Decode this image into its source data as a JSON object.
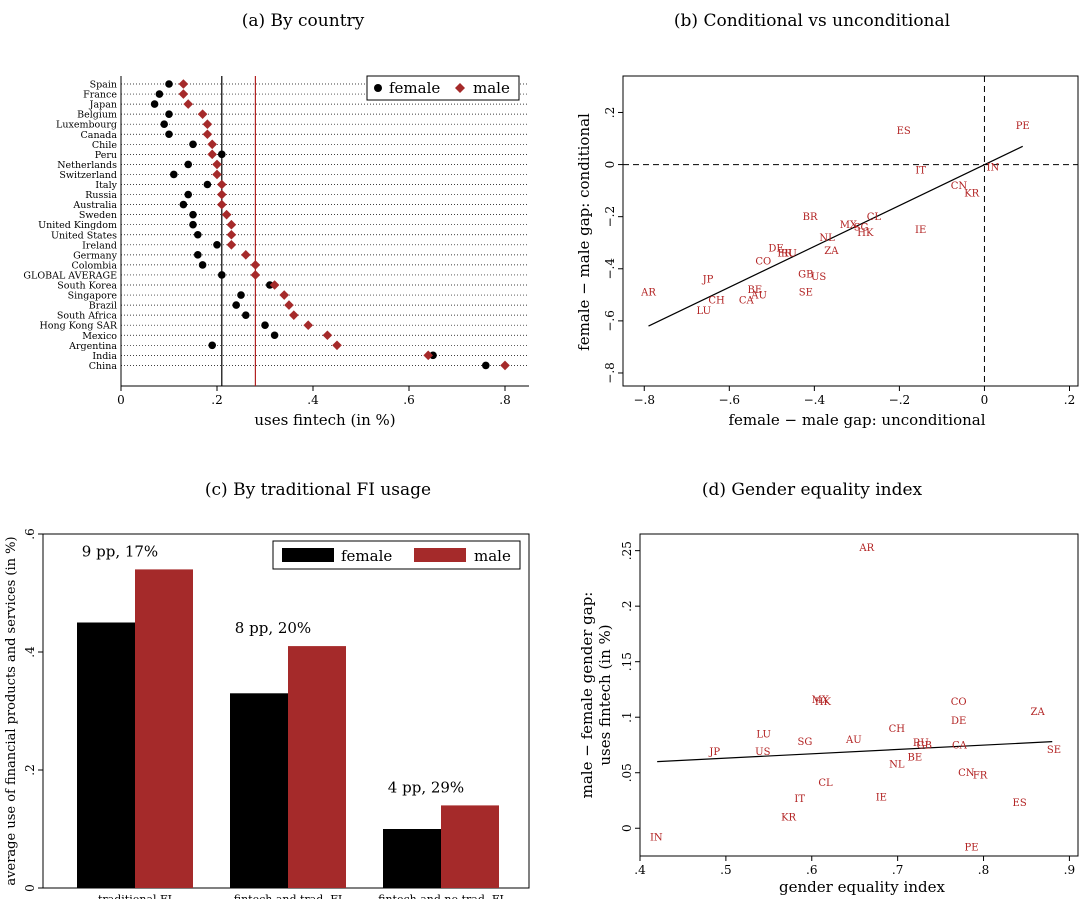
{
  "colors": {
    "female": "#000000",
    "male": "#a52a2a",
    "label_red": "#b22222"
  },
  "chart_data": [
    {
      "panel": "a",
      "type": "scatter",
      "title": "(a) By country",
      "xlabel": "uses fintech (in %)",
      "ylabel": "",
      "xlim": [
        0,
        0.85
      ],
      "xticks": [
        "0",
        ".2",
        ".4",
        ".6",
        ".8"
      ],
      "xtick_values": [
        0,
        0.2,
        0.4,
        0.6,
        0.8
      ],
      "grid": "dotted horizontal per country",
      "legend": {
        "placement": "top-right",
        "entries": [
          "female",
          "male"
        ]
      },
      "reference_lines": {
        "female_avg": 0.21,
        "male_avg": 0.28
      },
      "categories": [
        "Spain",
        "France",
        "Japan",
        "Belgium",
        "Luxembourg",
        "Canada",
        "Chile",
        "Peru",
        "Netherlands",
        "Switzerland",
        "Italy",
        "Russia",
        "Australia",
        "Sweden",
        "United Kingdom",
        "United States",
        "Ireland",
        "Germany",
        "Colombia",
        "GLOBAL AVERAGE",
        "South Korea",
        "Singapore",
        "Brazil",
        "South Africa",
        "Hong Kong SAR",
        "Mexico",
        "Argentina",
        "India",
        "China"
      ],
      "series": [
        {
          "name": "female",
          "values": [
            0.1,
            0.08,
            0.07,
            0.1,
            0.09,
            0.1,
            0.15,
            0.21,
            0.14,
            0.11,
            0.18,
            0.14,
            0.13,
            0.15,
            0.15,
            0.16,
            0.2,
            0.16,
            0.17,
            0.21,
            0.31,
            0.25,
            0.24,
            0.26,
            0.3,
            0.32,
            0.19,
            0.65,
            0.76
          ]
        },
        {
          "name": "male",
          "values": [
            0.13,
            0.13,
            0.14,
            0.17,
            0.18,
            0.18,
            0.19,
            0.19,
            0.2,
            0.2,
            0.21,
            0.21,
            0.21,
            0.22,
            0.23,
            0.23,
            0.23,
            0.26,
            0.28,
            0.28,
            0.32,
            0.34,
            0.35,
            0.36,
            0.39,
            0.43,
            0.45,
            0.64,
            0.8
          ]
        }
      ]
    },
    {
      "panel": "b",
      "type": "scatter",
      "title": "(b) Conditional vs unconditional",
      "xlabel": "female − male gap: unconditional",
      "ylabel": "female − male gap: conditional",
      "xlim": [
        -0.85,
        0.22
      ],
      "ylim": [
        -0.85,
        0.34
      ],
      "xticks": [
        "−.8",
        "−.6",
        "−.4",
        "−.2",
        "0",
        ".2"
      ],
      "xtick_values": [
        -0.8,
        -0.6,
        -0.4,
        -0.2,
        0,
        0.2
      ],
      "yticks": [
        "−.8",
        "−.6",
        "−.4",
        "−.2",
        "0",
        ".2"
      ],
      "ytick_values": [
        -0.8,
        -0.6,
        -0.4,
        -0.2,
        0,
        0.2
      ],
      "reference_lines": {
        "x": 0,
        "y": 0
      },
      "fit_line": [
        [
          -0.79,
          -0.62
        ],
        [
          0.09,
          0.07
        ]
      ],
      "points": [
        {
          "label": "PE",
          "x": 0.09,
          "y": 0.15
        },
        {
          "label": "ES",
          "x": -0.19,
          "y": 0.13
        },
        {
          "label": "IT",
          "x": -0.15,
          "y": -0.02
        },
        {
          "label": "IN",
          "x": 0.02,
          "y": -0.01
        },
        {
          "label": "CN",
          "x": -0.06,
          "y": -0.08
        },
        {
          "label": "KR",
          "x": -0.03,
          "y": -0.11
        },
        {
          "label": "BR",
          "x": -0.41,
          "y": -0.2
        },
        {
          "label": "CL",
          "x": -0.26,
          "y": -0.2
        },
        {
          "label": "MX",
          "x": -0.32,
          "y": -0.23
        },
        {
          "label": "SG",
          "x": -0.29,
          "y": -0.24
        },
        {
          "label": "HK",
          "x": -0.28,
          "y": -0.26
        },
        {
          "label": "IE",
          "x": -0.15,
          "y": -0.25
        },
        {
          "label": "NL",
          "x": -0.37,
          "y": -0.28
        },
        {
          "label": "DE",
          "x": -0.49,
          "y": -0.32
        },
        {
          "label": "ZA",
          "x": -0.36,
          "y": -0.33
        },
        {
          "label": "FR",
          "x": -0.47,
          "y": -0.34
        },
        {
          "label": "RU",
          "x": -0.46,
          "y": -0.34
        },
        {
          "label": "CO",
          "x": -0.52,
          "y": -0.37
        },
        {
          "label": "GB",
          "x": -0.42,
          "y": -0.42
        },
        {
          "label": "US",
          "x": -0.39,
          "y": -0.43
        },
        {
          "label": "JP",
          "x": -0.65,
          "y": -0.44
        },
        {
          "label": "AR",
          "x": -0.79,
          "y": -0.49
        },
        {
          "label": "BE",
          "x": -0.54,
          "y": -0.48
        },
        {
          "label": "SE",
          "x": -0.42,
          "y": -0.49
        },
        {
          "label": "AU",
          "x": -0.53,
          "y": -0.5
        },
        {
          "label": "CH",
          "x": -0.63,
          "y": -0.52
        },
        {
          "label": "CA",
          "x": -0.56,
          "y": -0.52
        },
        {
          "label": "LU",
          "x": -0.66,
          "y": -0.56
        }
      ]
    },
    {
      "panel": "c",
      "type": "bar",
      "title": "(c) By traditional FI usage",
      "xlabel": "",
      "ylabel": "average use of financial products and services (in %)",
      "ylim": [
        0,
        0.6
      ],
      "yticks": [
        "0",
        ".2",
        ".4",
        ".6"
      ],
      "ytick_values": [
        0,
        0.2,
        0.4,
        0.6
      ],
      "legend": {
        "placement": "top-right",
        "entries": [
          "female",
          "male"
        ]
      },
      "categories": [
        "traditional FI",
        "fintech and trad. FI",
        "fintech and no trad. FI"
      ],
      "annotations": [
        "9 pp, 17%",
        "8 pp, 20%",
        "4 pp, 29%"
      ],
      "series": [
        {
          "name": "female",
          "values": [
            0.45,
            0.33,
            0.1
          ]
        },
        {
          "name": "male",
          "values": [
            0.54,
            0.41,
            0.14
          ]
        }
      ]
    },
    {
      "panel": "d",
      "type": "scatter",
      "title": "(d) Gender equality index",
      "xlabel": "gender equality index",
      "ylabel": "male − female gender gap: uses fintech (in %)",
      "xlim": [
        0.4,
        0.91
      ],
      "ylim": [
        -0.025,
        0.265
      ],
      "xticks": [
        ".4",
        ".5",
        ".6",
        ".7",
        ".8",
        ".9"
      ],
      "xtick_values": [
        0.4,
        0.5,
        0.6,
        0.7,
        0.8,
        0.9
      ],
      "yticks": [
        "0",
        ".05",
        ".1",
        ".15",
        ".2",
        ".25"
      ],
      "ytick_values": [
        0,
        0.05,
        0.1,
        0.15,
        0.2,
        0.25
      ],
      "fit_line": [
        [
          0.42,
          0.06
        ],
        [
          0.88,
          0.078
        ]
      ],
      "points": [
        {
          "label": "AR",
          "x": 0.664,
          "y": 0.253
        },
        {
          "label": "MX",
          "x": 0.61,
          "y": 0.116
        },
        {
          "label": "HK",
          "x": 0.613,
          "y": 0.114
        },
        {
          "label": "CO",
          "x": 0.771,
          "y": 0.114
        },
        {
          "label": "ZA",
          "x": 0.863,
          "y": 0.105
        },
        {
          "label": "DE",
          "x": 0.771,
          "y": 0.097
        },
        {
          "label": "CH",
          "x": 0.699,
          "y": 0.09
        },
        {
          "label": "LU",
          "x": 0.544,
          "y": 0.085
        },
        {
          "label": "AU",
          "x": 0.649,
          "y": 0.08
        },
        {
          "label": "SG",
          "x": 0.592,
          "y": 0.078
        },
        {
          "label": "RU",
          "x": 0.727,
          "y": 0.077
        },
        {
          "label": "GB",
          "x": 0.731,
          "y": 0.075
        },
        {
          "label": "CA",
          "x": 0.772,
          "y": 0.075
        },
        {
          "label": "SE",
          "x": 0.882,
          "y": 0.071
        },
        {
          "label": "JP",
          "x": 0.487,
          "y": 0.069
        },
        {
          "label": "US",
          "x": 0.543,
          "y": 0.069
        },
        {
          "label": "BE",
          "x": 0.72,
          "y": 0.064
        },
        {
          "label": "NL",
          "x": 0.699,
          "y": 0.058
        },
        {
          "label": "CN",
          "x": 0.78,
          "y": 0.05
        },
        {
          "label": "FR",
          "x": 0.796,
          "y": 0.048
        },
        {
          "label": "CL",
          "x": 0.616,
          "y": 0.041
        },
        {
          "label": "IE",
          "x": 0.681,
          "y": 0.028
        },
        {
          "label": "IT",
          "x": 0.586,
          "y": 0.027
        },
        {
          "label": "ES",
          "x": 0.842,
          "y": 0.023
        },
        {
          "label": "KR",
          "x": 0.573,
          "y": 0.01
        },
        {
          "label": "IN",
          "x": 0.419,
          "y": -0.008
        },
        {
          "label": "PE",
          "x": 0.786,
          "y": -0.017
        }
      ]
    }
  ]
}
